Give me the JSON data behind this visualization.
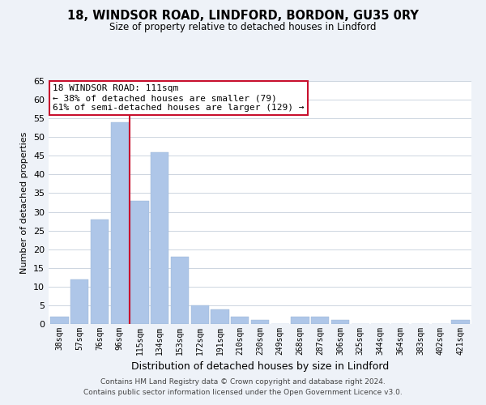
{
  "title": "18, WINDSOR ROAD, LINDFORD, BORDON, GU35 0RY",
  "subtitle": "Size of property relative to detached houses in Lindford",
  "xlabel": "Distribution of detached houses by size in Lindford",
  "ylabel": "Number of detached properties",
  "bar_labels": [
    "38sqm",
    "57sqm",
    "76sqm",
    "96sqm",
    "115sqm",
    "134sqm",
    "153sqm",
    "172sqm",
    "191sqm",
    "210sqm",
    "230sqm",
    "249sqm",
    "268sqm",
    "287sqm",
    "306sqm",
    "325sqm",
    "344sqm",
    "364sqm",
    "383sqm",
    "402sqm",
    "421sqm"
  ],
  "bar_values": [
    2,
    12,
    28,
    54,
    33,
    46,
    18,
    5,
    4,
    2,
    1,
    0,
    2,
    2,
    1,
    0,
    0,
    0,
    0,
    0,
    1
  ],
  "bar_color": "#aec6e8",
  "highlight_color": "#c8102e",
  "annotation_title": "18 WINDSOR ROAD: 111sqm",
  "annotation_line1": "← 38% of detached houses are smaller (79)",
  "annotation_line2": "61% of semi-detached houses are larger (129) →",
  "footer_line1": "Contains HM Land Registry data © Crown copyright and database right 2024.",
  "footer_line2": "Contains public sector information licensed under the Open Government Licence v3.0.",
  "ylim": [
    0,
    65
  ],
  "yticks": [
    0,
    5,
    10,
    15,
    20,
    25,
    30,
    35,
    40,
    45,
    50,
    55,
    60,
    65
  ],
  "bg_color": "#eef2f8",
  "plot_bg_color": "#ffffff",
  "grid_color": "#cdd5e0",
  "highlight_bar_index": 4,
  "red_line_x": 4.5
}
